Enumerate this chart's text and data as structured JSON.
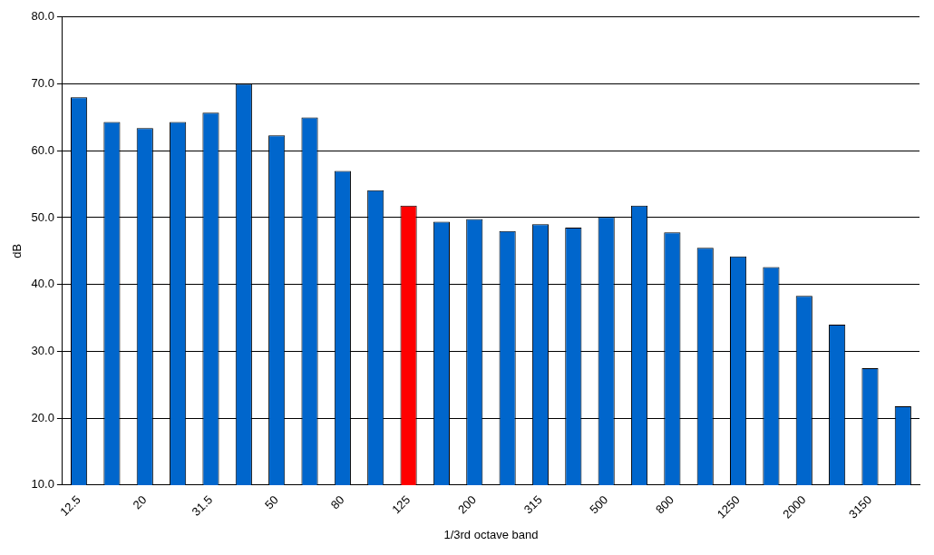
{
  "chart_data": {
    "type": "bar",
    "xlabel": "1/3rd octave band",
    "ylabel": "dB",
    "categories": [
      "12.5",
      null,
      "20",
      null,
      "31.5",
      null,
      "50",
      null,
      "80",
      null,
      "125",
      null,
      "200",
      null,
      "315",
      null,
      "500",
      null,
      "800",
      null,
      "1250",
      null,
      "2000",
      null,
      "3150",
      null
    ],
    "values": [
      68,
      64.3,
      63.4,
      64.3,
      65.7,
      70,
      62.3,
      65,
      57,
      54.1,
      51.8,
      49.4,
      49.8,
      48,
      49,
      48.5,
      50.1,
      51.8,
      47.8,
      45.5,
      44.2,
      42.6,
      38.3,
      34,
      27.5,
      21.8
    ],
    "colors": [
      "#0066cc",
      "#0066cc",
      "#0066cc",
      "#0066cc",
      "#0066cc",
      "#0066cc",
      "#0066cc",
      "#0066cc",
      "#0066cc",
      "#0066cc",
      "#ff0000",
      "#0066cc",
      "#0066cc",
      "#0066cc",
      "#0066cc",
      "#0066cc",
      "#0066cc",
      "#0066cc",
      "#0066cc",
      "#0066cc",
      "#0066cc",
      "#0066cc",
      "#0066cc",
      "#0066cc",
      "#0066cc",
      "#0066cc"
    ],
    "ylim": [
      10,
      80
    ],
    "yticks": [
      {
        "value": 10,
        "label": "10.0"
      },
      {
        "value": 20,
        "label": "20.0"
      },
      {
        "value": 30,
        "label": "30.0"
      },
      {
        "value": 40,
        "label": "40.0"
      },
      {
        "value": 50,
        "label": "50.0"
      },
      {
        "value": 60,
        "label": "60.0"
      },
      {
        "value": 70,
        "label": "70.0"
      },
      {
        "value": 80,
        "label": "80.0"
      }
    ],
    "grid": "y",
    "legend": false
  }
}
